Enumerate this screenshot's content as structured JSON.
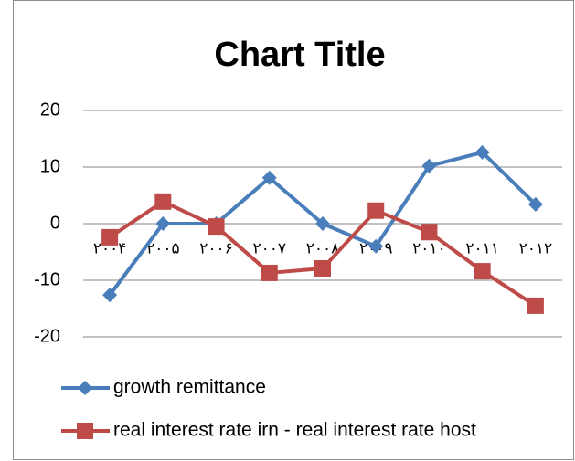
{
  "chart_data": {
    "type": "line",
    "title": "Chart Title",
    "categories": [
      "۲۰۰۴",
      "۲۰۰۵",
      "۲۰۰۶",
      "۲۰۰۷",
      "۲۰۰۸",
      "۲۰۰۹",
      "۲۰۱۰",
      "۲۰۱۱",
      "۲۰۱۲"
    ],
    "series": [
      {
        "name": "growth remittance",
        "color": "#4a7ebb",
        "marker": "diamond",
        "values": [
          -12.6,
          0,
          0,
          8.1,
          0,
          -4,
          10.2,
          12.6,
          3.4
        ]
      },
      {
        "name": "real interest rate irn - real interest rate host",
        "color": "#be4b48",
        "marker": "square",
        "values": [
          -2.4,
          3.9,
          -0.5,
          -8.7,
          -7.9,
          2.3,
          -1.5,
          -8.4,
          -14.5
        ]
      }
    ],
    "ylim": [
      -20,
      20
    ],
    "yticks": [
      -20,
      -10,
      0,
      10,
      20
    ],
    "grid": true,
    "legend": "bottom"
  }
}
